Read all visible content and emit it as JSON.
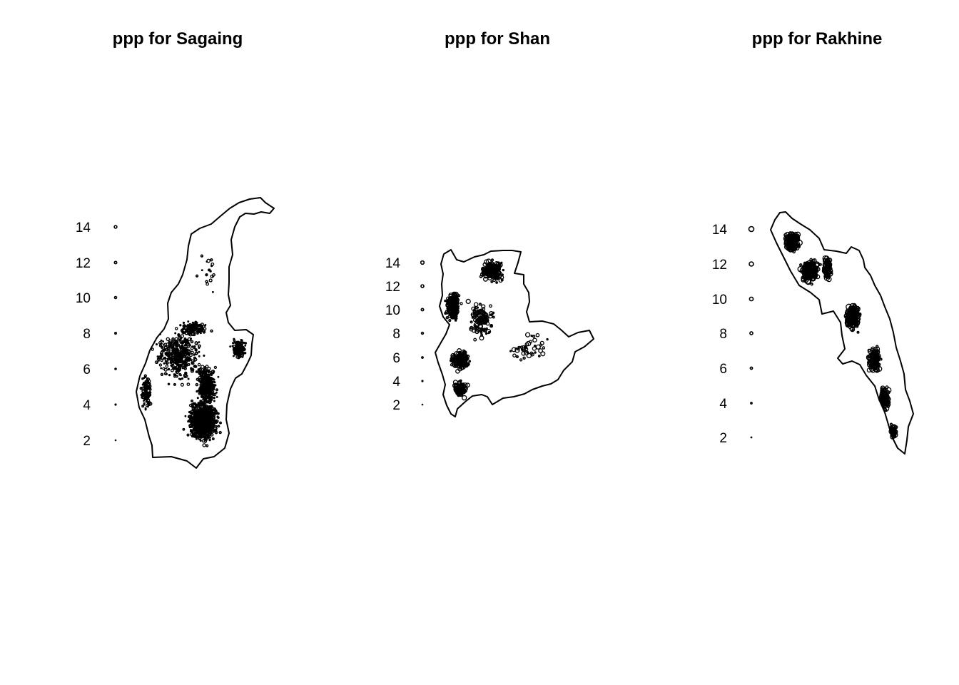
{
  "figure": {
    "panels": [
      {
        "id": "sagaing",
        "title": "ppp for Sagaing",
        "legend": [
          {
            "label": "14",
            "value": 14
          },
          {
            "label": "12",
            "value": 12
          },
          {
            "label": "10",
            "value": 10
          },
          {
            "label": "8",
            "value": 8
          },
          {
            "label": "6",
            "value": 6
          },
          {
            "label": "4",
            "value": 4
          },
          {
            "label": "2",
            "value": 2
          }
        ],
        "marker_scale": "small",
        "point_density": "very high, concentrated in south-east"
      },
      {
        "id": "shan",
        "title": "ppp for Shan",
        "legend": [
          {
            "label": "14",
            "value": 14
          },
          {
            "label": "12",
            "value": 12
          },
          {
            "label": "10",
            "value": 10
          },
          {
            "label": "8",
            "value": 8
          },
          {
            "label": "6",
            "value": 6
          },
          {
            "label": "4",
            "value": 4
          },
          {
            "label": "2",
            "value": 2
          }
        ],
        "marker_scale": "medium",
        "point_density": "high, concentrated in west and north"
      },
      {
        "id": "rakhine",
        "title": "ppp for Rakhine",
        "legend": [
          {
            "label": "14",
            "value": 14
          },
          {
            "label": "12",
            "value": 12
          },
          {
            "label": "10",
            "value": 10
          },
          {
            "label": "8",
            "value": 8
          },
          {
            "label": "6",
            "value": 6
          },
          {
            "label": "4",
            "value": 4
          },
          {
            "label": "2",
            "value": 2
          }
        ],
        "marker_scale": "large",
        "point_density": "high, along the coastal strip"
      }
    ],
    "colors": {
      "ink": "#000000",
      "background": "#ffffff"
    }
  }
}
